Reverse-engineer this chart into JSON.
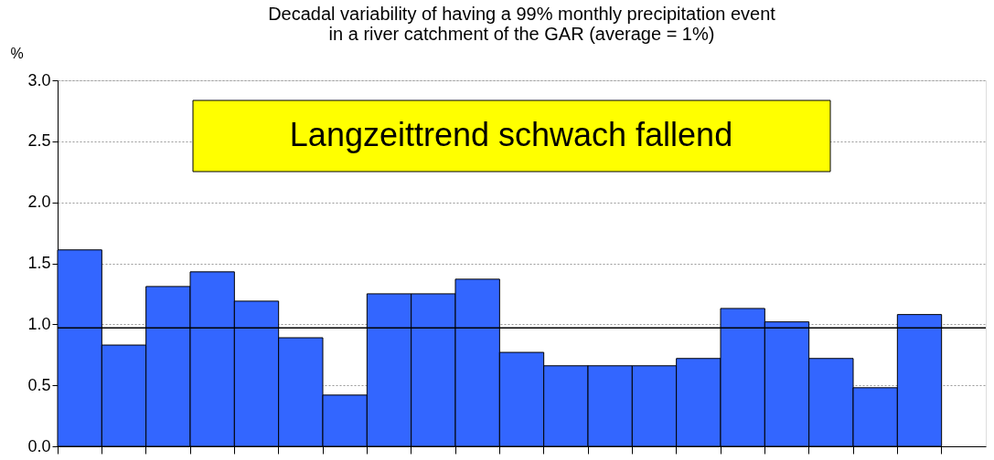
{
  "chart_data": {
    "type": "bar",
    "title": "Decadal variability of having a 99% monthly precipitation event\nin a river catchment of the GAR (average = 1%)",
    "ylabel": "%",
    "categories": [
      null,
      null,
      null,
      null,
      null,
      null,
      null,
      null,
      null,
      null,
      null,
      null,
      null,
      null,
      null,
      null,
      null,
      null,
      null,
      null,
      null
    ],
    "values": [
      1.61,
      0.83,
      1.31,
      1.43,
      1.19,
      0.89,
      0.42,
      1.25,
      1.25,
      1.37,
      0.77,
      0.66,
      0.66,
      0.66,
      0.72,
      1.13,
      1.02,
      0.72,
      0.48,
      1.08,
      null
    ],
    "color": "#3366ff",
    "ylim": [
      0,
      3.0
    ],
    "yticks": [
      {
        "value": 0,
        "label": "0.0"
      },
      {
        "value": 0.5,
        "label": "0.5"
      },
      {
        "value": 1,
        "label": "1.0"
      },
      {
        "value": 1.5,
        "label": "1.5"
      },
      {
        "value": 2,
        "label": "2.0"
      },
      {
        "value": 2.5,
        "label": "2.5"
      },
      {
        "value": 3,
        "label": "3.0"
      }
    ],
    "grid": "y",
    "ref_lines": [
      {
        "axis": "y",
        "value": 0.97,
        "color": "#000000"
      }
    ],
    "annotations": [
      "Langzeittrend schwach fallend"
    ]
  }
}
